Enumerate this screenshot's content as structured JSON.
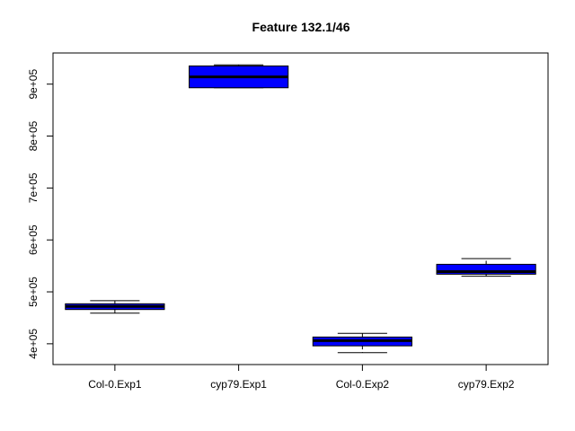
{
  "chart_data": {
    "type": "box",
    "title": "Feature  132.1/46",
    "xlabel": "",
    "ylabel": "",
    "categories": [
      "Col-0.Exp1",
      "cyp79.Exp1",
      "Col-0.Exp2",
      "cyp79.Exp2"
    ],
    "ylim": [
      360000,
      960000
    ],
    "yticks": [
      400000,
      500000,
      600000,
      700000,
      800000,
      900000
    ],
    "ytick_labels": [
      "4e+05",
      "5e+05",
      "6e+05",
      "7e+05",
      "8e+05",
      "9e+05"
    ],
    "boxes": [
      {
        "category": "Col-0.Exp1",
        "whisker_low": 459000,
        "q1": 466000,
        "median": 472000,
        "q3": 477000,
        "whisker_high": 483000
      },
      {
        "category": "cyp79.Exp1",
        "whisker_low": 893000,
        "q1": 893000,
        "median": 914000,
        "q3": 935000,
        "whisker_high": 937000
      },
      {
        "category": "Col-0.Exp2",
        "whisker_low": 383000,
        "q1": 396000,
        "median": 406000,
        "q3": 413000,
        "whisker_high": 420000
      },
      {
        "category": "cyp79.Exp2",
        "whisker_low": 530000,
        "q1": 534000,
        "median": 539000,
        "q3": 553000,
        "whisker_high": 564000
      }
    ],
    "box_color": "#0000FF",
    "grid": false,
    "legend": "none"
  }
}
